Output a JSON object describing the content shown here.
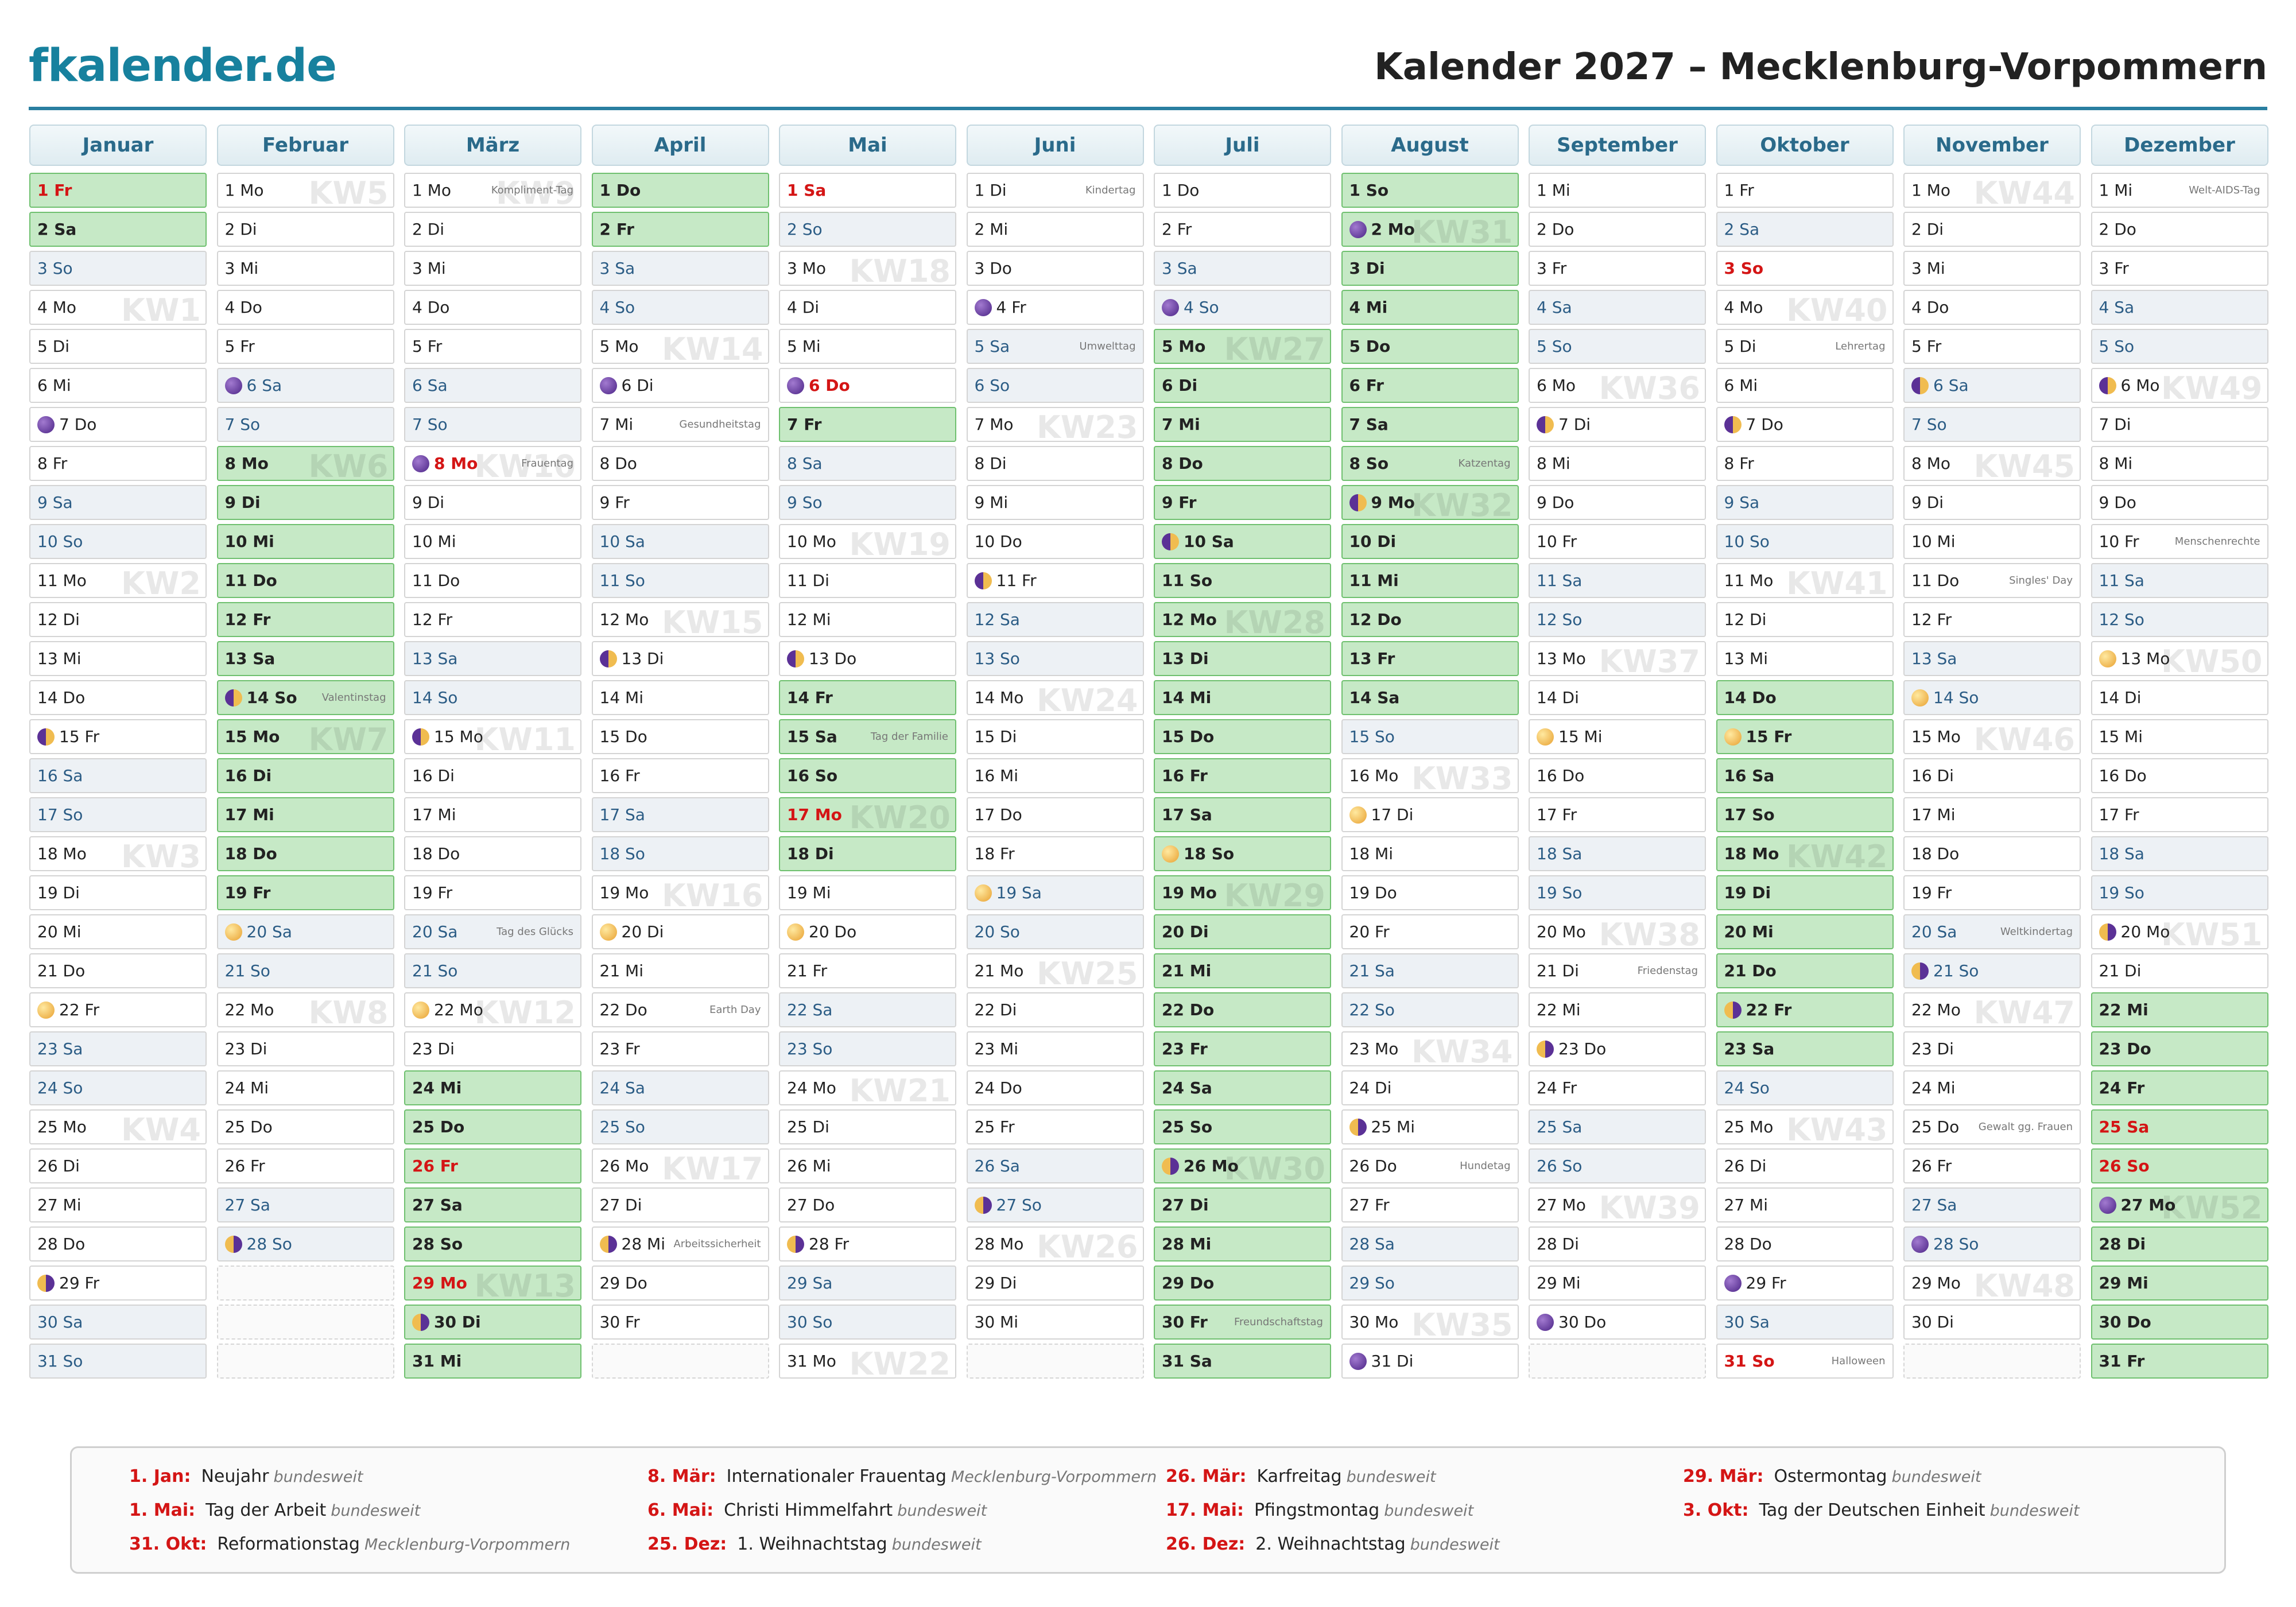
{
  "header": {
    "brand": "fkalender.de",
    "title": "Kalender 2027 – Mecklenburg-Vorpommern"
  },
  "months": [
    {
      "name": "Januar",
      "days": [
        "1 Fr",
        "2 Sa",
        "3 So",
        "4 Mo",
        "5 Di",
        "6 Mi",
        "7 Do",
        "8 Fr",
        "9 Sa",
        "10 So",
        "11 Mo",
        "12 Di",
        "13 Mi",
        "14 Do",
        "15 Fr",
        "16 Sa",
        "17 So",
        "18 Mo",
        "19 Di",
        "20 Mi",
        "21 Do",
        "22 Fr",
        "23 Sa",
        "24 So",
        "25 Mo",
        "26 Di",
        "27 Mi",
        "28 Do",
        "29 Fr",
        "30 Sa",
        "31 So"
      ],
      "kinds": "rvwnnnnnwwnnnnnwwnnnnnwwnnnnnww",
      "moons": {
        "7": "new",
        "15": "first",
        "22": "full",
        "29": "last"
      },
      "kw": {
        "4": "KW1",
        "11": "KW2",
        "18": "KW3",
        "25": "KW4"
      },
      "notes": {}
    },
    {
      "name": "Februar",
      "days": [
        "1 Mo",
        "2 Di",
        "3 Mi",
        "4 Do",
        "5 Fr",
        "6 Sa",
        "7 So",
        "8 Mo",
        "9 Di",
        "10 Mi",
        "11 Do",
        "12 Fr",
        "13 Sa",
        "14 So",
        "15 Mo",
        "16 Di",
        "17 Mi",
        "18 Do",
        "19 Fr",
        "20 Sa",
        "21 So",
        "22 Mo",
        "23 Di",
        "24 Mi",
        "25 Do",
        "26 Fr",
        "27 Sa",
        "28 So"
      ],
      "kinds": "nnnnnwwvvvvvvvvvvvvwwnnnnnww",
      "moons": {
        "6": "new",
        "14": "first",
        "20": "full",
        "28": "last"
      },
      "kw": {
        "1": "KW5",
        "8": "KW6",
        "15": "KW7",
        "22": "KW8"
      },
      "notes": {
        "14": "Valentinstag"
      }
    },
    {
      "name": "März",
      "days": [
        "1 Mo",
        "2 Di",
        "3 Mi",
        "4 Do",
        "5 Fr",
        "6 Sa",
        "7 So",
        "8 Mo",
        "9 Di",
        "10 Mi",
        "11 Do",
        "12 Fr",
        "13 Sa",
        "14 So",
        "15 Mo",
        "16 Di",
        "17 Mi",
        "18 Do",
        "19 Fr",
        "20 Sa",
        "21 So",
        "22 Mo",
        "23 Di",
        "24 Mi",
        "25 Do",
        "26 Fr",
        "27 Sa",
        "28 So",
        "29 Mo",
        "30 Di",
        "31 Mi"
      ],
      "kinds": "nnnnnwwhnnnnwwnnnnnwwnnvvrvvrvv",
      "moons": {
        "8": "new",
        "15": "first",
        "22": "full",
        "30": "last"
      },
      "kw": {
        "1": "KW9",
        "8": "KW10",
        "15": "KW11",
        "22": "KW12",
        "29": "KW13"
      },
      "notes": {
        "1": "Kompliment-Tag",
        "8": "Frauentag",
        "20": "Tag des Glücks"
      }
    },
    {
      "name": "April",
      "days": [
        "1 Do",
        "2 Fr",
        "3 Sa",
        "4 So",
        "5 Mo",
        "6 Di",
        "7 Mi",
        "8 Do",
        "9 Fr",
        "10 Sa",
        "11 So",
        "12 Mo",
        "13 Di",
        "14 Mi",
        "15 Do",
        "16 Fr",
        "17 Sa",
        "18 So",
        "19 Mo",
        "20 Di",
        "21 Mi",
        "22 Do",
        "23 Fr",
        "24 Sa",
        "25 So",
        "26 Mo",
        "27 Di",
        "28 Mi",
        "29 Do",
        "30 Fr"
      ],
      "kinds": "vvwwnnnnnwwnnnnnwwnnnnnwwnnnnn",
      "moons": {
        "6": "new",
        "13": "first",
        "20": "full",
        "28": "last"
      },
      "kw": {
        "5": "KW14",
        "12": "KW15",
        "19": "KW16",
        "26": "KW17"
      },
      "notes": {
        "7": "Gesundheitstag",
        "22": "Earth Day",
        "28": "Arbeitssicherheit"
      }
    },
    {
      "name": "Mai",
      "days": [
        "1 Sa",
        "2 So",
        "3 Mo",
        "4 Di",
        "5 Mi",
        "6 Do",
        "7 Fr",
        "8 Sa",
        "9 So",
        "10 Mo",
        "11 Di",
        "12 Mi",
        "13 Do",
        "14 Fr",
        "15 Sa",
        "16 So",
        "17 Mo",
        "18 Di",
        "19 Mi",
        "20 Do",
        "21 Fr",
        "22 Sa",
        "23 So",
        "24 Mo",
        "25 Di",
        "26 Mi",
        "27 Do",
        "28 Fr",
        "29 Sa",
        "30 So",
        "31 Mo"
      ],
      "kinds": "hwnnnhvwwnnnnvvvrvnnnwwnnnnnwwn",
      "moons": {
        "6": "new",
        "13": "first",
        "20": "full",
        "28": "last"
      },
      "kw": {
        "3": "KW18",
        "10": "KW19",
        "17": "KW20",
        "24": "KW21",
        "31": "KW22"
      },
      "notes": {
        "15": "Tag der Familie"
      }
    },
    {
      "name": "Juni",
      "days": [
        "1 Di",
        "2 Mi",
        "3 Do",
        "4 Fr",
        "5 Sa",
        "6 So",
        "7 Mo",
        "8 Di",
        "9 Mi",
        "10 Do",
        "11 Fr",
        "12 Sa",
        "13 So",
        "14 Mo",
        "15 Di",
        "16 Mi",
        "17 Do",
        "18 Fr",
        "19 Sa",
        "20 So",
        "21 Mo",
        "22 Di",
        "23 Mi",
        "24 Do",
        "25 Fr",
        "26 Sa",
        "27 So",
        "28 Mo",
        "29 Di",
        "30 Mi"
      ],
      "kinds": "nnnnwwnnnnnwwnnnnnwwnnnnnwwnnn",
      "moons": {
        "4": "new",
        "11": "first",
        "19": "full",
        "27": "last"
      },
      "kw": {
        "7": "KW23",
        "14": "KW24",
        "21": "KW25",
        "28": "KW26"
      },
      "notes": {
        "1": "Kindertag",
        "5": "Umwelttag"
      }
    },
    {
      "name": "Juli",
      "days": [
        "1 Do",
        "2 Fr",
        "3 Sa",
        "4 So",
        "5 Mo",
        "6 Di",
        "7 Mi",
        "8 Do",
        "9 Fr",
        "10 Sa",
        "11 So",
        "12 Mo",
        "13 Di",
        "14 Mi",
        "15 Do",
        "16 Fr",
        "17 Sa",
        "18 So",
        "19 Mo",
        "20 Di",
        "21 Mi",
        "22 Do",
        "23 Fr",
        "24 Sa",
        "25 So",
        "26 Mo",
        "27 Di",
        "28 Mi",
        "29 Do",
        "30 Fr",
        "31 Sa"
      ],
      "kinds": "nnwwvvvvvvvvvvvvvvvvvvvvvvvvvvv",
      "moons": {
        "4": "new",
        "10": "first",
        "18": "full",
        "26": "last"
      },
      "kw": {
        "5": "KW27",
        "12": "KW28",
        "19": "KW29",
        "26": "KW30"
      },
      "notes": {
        "30": "Freundschaftstag"
      }
    },
    {
      "name": "August",
      "days": [
        "1 So",
        "2 Mo",
        "3 Di",
        "4 Mi",
        "5 Do",
        "6 Fr",
        "7 Sa",
        "8 So",
        "9 Mo",
        "10 Di",
        "11 Mi",
        "12 Do",
        "13 Fr",
        "14 Sa",
        "15 So",
        "16 Mo",
        "17 Di",
        "18 Mi",
        "19 Do",
        "20 Fr",
        "21 Sa",
        "22 So",
        "23 Mo",
        "24 Di",
        "25 Mi",
        "26 Do",
        "27 Fr",
        "28 Sa",
        "29 So",
        "30 Mo",
        "31 Di"
      ],
      "kinds": "vvvvvvvvvvvvvvwnnnnnwwnnnnnwwnn",
      "moons": {
        "2": "new",
        "9": "first",
        "17": "full",
        "25": "last",
        "31": "new"
      },
      "kw": {
        "2": "KW31",
        "9": "KW32",
        "16": "KW33",
        "23": "KW34",
        "30": "KW35"
      },
      "notes": {
        "8": "Katzentag",
        "26": "Hundetag"
      }
    },
    {
      "name": "September",
      "days": [
        "1 Mi",
        "2 Do",
        "3 Fr",
        "4 Sa",
        "5 So",
        "6 Mo",
        "7 Di",
        "8 Mi",
        "9 Do",
        "10 Fr",
        "11 Sa",
        "12 So",
        "13 Mo",
        "14 Di",
        "15 Mi",
        "16 Do",
        "17 Fr",
        "18 Sa",
        "19 So",
        "20 Mo",
        "21 Di",
        "22 Mi",
        "23 Do",
        "24 Fr",
        "25 Sa",
        "26 So",
        "27 Mo",
        "28 Di",
        "29 Mi",
        "30 Do"
      ],
      "kinds": "nnnwwnnnnnwwnnnnnwwnnnnnwwnnnn",
      "moons": {
        "7": "first",
        "15": "full",
        "23": "last",
        "30": "new"
      },
      "kw": {
        "6": "KW36",
        "13": "KW37",
        "20": "KW38",
        "27": "KW39"
      },
      "notes": {
        "21": "Friedenstag"
      }
    },
    {
      "name": "Oktober",
      "days": [
        "1 Fr",
        "2 Sa",
        "3 So",
        "4 Mo",
        "5 Di",
        "6 Mi",
        "7 Do",
        "8 Fr",
        "9 Sa",
        "10 So",
        "11 Mo",
        "12 Di",
        "13 Mi",
        "14 Do",
        "15 Fr",
        "16 Sa",
        "17 So",
        "18 Mo",
        "19 Di",
        "20 Mi",
        "21 Do",
        "22 Fr",
        "23 Sa",
        "24 So",
        "25 Mo",
        "26 Di",
        "27 Mi",
        "28 Do",
        "29 Fr",
        "30 Sa",
        "31 So"
      ],
      "kinds": "nwhnnnnnwwnnnvvvvvvvvvvwnnnnnwh",
      "moons": {
        "7": "first",
        "15": "full",
        "22": "last",
        "29": "new"
      },
      "kw": {
        "4": "KW40",
        "11": "KW41",
        "18": "KW42",
        "25": "KW43"
      },
      "notes": {
        "5": "Lehrertag",
        "31": "Halloween"
      }
    },
    {
      "name": "November",
      "days": [
        "1 Mo",
        "2 Di",
        "3 Mi",
        "4 Do",
        "5 Fr",
        "6 Sa",
        "7 So",
        "8 Mo",
        "9 Di",
        "10 Mi",
        "11 Do",
        "12 Fr",
        "13 Sa",
        "14 So",
        "15 Mo",
        "16 Di",
        "17 Mi",
        "18 Do",
        "19 Fr",
        "20 Sa",
        "21 So",
        "22 Mo",
        "23 Di",
        "24 Mi",
        "25 Do",
        "26 Fr",
        "27 Sa",
        "28 So",
        "29 Mo",
        "30 Di"
      ],
      "kinds": "nnnnnwwnnnnnwwnnnnnwwnnnnnwwnn",
      "moons": {
        "6": "first",
        "14": "full",
        "21": "last",
        "28": "new"
      },
      "kw": {
        "1": "KW44",
        "8": "KW45",
        "15": "KW46",
        "22": "KW47",
        "29": "KW48"
      },
      "notes": {
        "11": "Singles' Day",
        "20": "Weltkindertag",
        "25": "Gewalt gg. Frauen"
      }
    },
    {
      "name": "Dezember",
      "days": [
        "1 Mi",
        "2 Do",
        "3 Fr",
        "4 Sa",
        "5 So",
        "6 Mo",
        "7 Di",
        "8 Mi",
        "9 Do",
        "10 Fr",
        "11 Sa",
        "12 So",
        "13 Mo",
        "14 Di",
        "15 Mi",
        "16 Do",
        "17 Fr",
        "18 Sa",
        "19 So",
        "20 Mo",
        "21 Di",
        "22 Mi",
        "23 Do",
        "24 Fr",
        "25 Sa",
        "26 So",
        "27 Mo",
        "28 Di",
        "29 Mi",
        "30 Do",
        "31 Fr"
      ],
      "kinds": "nnnwwnnnnnwwnnnnnwwnnvvvrrvvvvv",
      "moons": {
        "6": "first",
        "13": "full",
        "20": "last",
        "27": "new"
      },
      "kw": {
        "6": "KW49",
        "13": "KW50",
        "20": "KW51",
        "27": "KW52"
      },
      "notes": {
        "1": "Welt-AIDS-Tag",
        "10": "Menschenrechte"
      }
    }
  ],
  "holidays": [
    {
      "date": "1. Jan:",
      "name": "Neujahr",
      "region": "bundesweit"
    },
    {
      "date": "8. Mär:",
      "name": "Internationaler Frauentag",
      "region": "Mecklenburg-Vorpommern"
    },
    {
      "date": "26. Mär:",
      "name": "Karfreitag",
      "region": "bundesweit"
    },
    {
      "date": "29. Mär:",
      "name": "Ostermontag",
      "region": "bundesweit"
    },
    {
      "date": "1. Mai:",
      "name": "Tag der Arbeit",
      "region": "bundesweit"
    },
    {
      "date": "6. Mai:",
      "name": "Christi Himmelfahrt",
      "region": "bundesweit"
    },
    {
      "date": "17. Mai:",
      "name": "Pfingstmontag",
      "region": "bundesweit"
    },
    {
      "date": "3. Okt:",
      "name": "Tag der Deutschen Einheit",
      "region": "bundesweit"
    },
    {
      "date": "31. Okt:",
      "name": "Reformationstag",
      "region": "Mecklenburg-Vorpommern"
    },
    {
      "date": "25. Dez:",
      "name": "1. Weihnachtstag",
      "region": "bundesweit"
    },
    {
      "date": "26. Dez:",
      "name": "2. Weihnachtstag",
      "region": "bundesweit"
    }
  ]
}
